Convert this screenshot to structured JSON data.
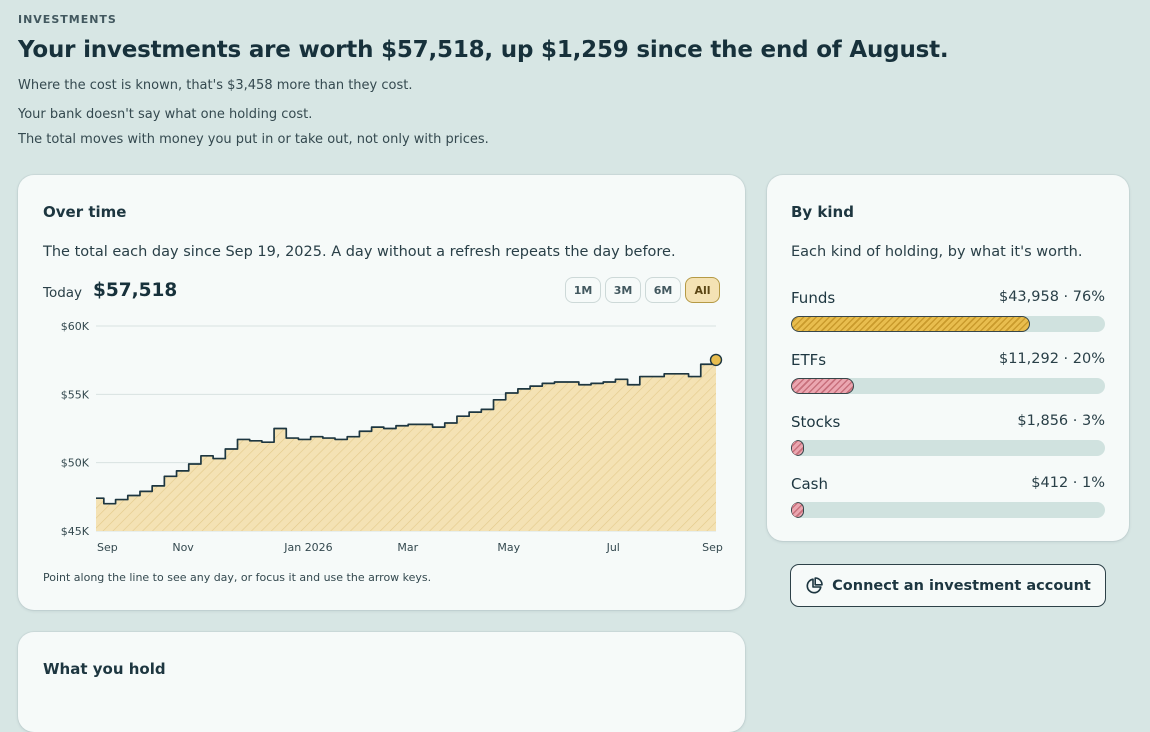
{
  "page": {
    "eyebrow": "INVESTMENTS",
    "headline": "Your investments are worth $57,518, up $1,259 since the end of August.",
    "notes": [
      "Where the cost is known, that's $3,458 more than they cost.",
      "Your bank doesn't say what one holding cost.",
      "The total moves with money you put in or take out, not only with prices."
    ]
  },
  "over_time": {
    "title": "Over time",
    "description": "The total each day since Sep 19, 2025. A day without a refresh repeats the day before.",
    "today_label": "Today",
    "today_value": "$57,518",
    "ranges": [
      "1M",
      "3M",
      "6M",
      "All"
    ],
    "active_range": "All",
    "hint": "Point along the line to see any day, or focus it and use the arrow keys."
  },
  "chart_data": {
    "type": "area",
    "title": "",
    "xlabel": "",
    "ylabel": "",
    "ylim": [
      45000,
      60000
    ],
    "y_ticks": [
      "$45K",
      "$50K",
      "$55K",
      "$60K"
    ],
    "y_tick_values": [
      45000,
      50000,
      55000,
      60000
    ],
    "x_ticks": [
      "Sep",
      "Nov",
      "Jan 2026",
      "Mar",
      "May",
      "Jul",
      "Sep"
    ],
    "x_tick_dates": [
      "2025-09-19",
      "2025-11-08",
      "2026-01-19",
      "2026-03-17",
      "2026-05-14",
      "2026-07-13",
      "2026-09-08"
    ],
    "grid": true,
    "legend": "none",
    "colors": {
      "line": "#1d3640",
      "area": "#f4e2b4",
      "hatch": "#e3c98a",
      "end_point": "#e8bd4e"
    },
    "series": [
      {
        "x": [
          "2025-09-19",
          "2025-09-25",
          "2025-10-02",
          "2025-10-09",
          "2025-10-16",
          "2025-10-23",
          "2025-10-30",
          "2025-11-06",
          "2025-11-13",
          "2025-11-20",
          "2025-11-27",
          "2025-12-04",
          "2025-12-11",
          "2025-12-18",
          "2025-12-25",
          "2026-01-01",
          "2026-01-08",
          "2026-01-15",
          "2026-01-22",
          "2026-01-29",
          "2026-02-05",
          "2026-02-12",
          "2026-02-19",
          "2026-02-26",
          "2026-03-05",
          "2026-03-12",
          "2026-03-19",
          "2026-03-26",
          "2026-04-02",
          "2026-04-09",
          "2026-04-16",
          "2026-04-23",
          "2026-04-30",
          "2026-05-07",
          "2026-05-14",
          "2026-05-21",
          "2026-05-28",
          "2026-06-04",
          "2026-06-11",
          "2026-06-18",
          "2026-06-25",
          "2026-07-02",
          "2026-07-09",
          "2026-07-16",
          "2026-07-23",
          "2026-07-30",
          "2026-08-06",
          "2026-08-13",
          "2026-08-20",
          "2026-08-27",
          "2026-09-03",
          "2026-09-10"
        ],
        "values": [
          47400,
          47000,
          47300,
          47600,
          47900,
          48300,
          49000,
          49400,
          49900,
          50500,
          50300,
          51000,
          51700,
          51600,
          51500,
          52500,
          51800,
          51700,
          51900,
          51800,
          51700,
          51900,
          52300,
          52600,
          52500,
          52700,
          52800,
          52800,
          52600,
          52900,
          53400,
          53700,
          53900,
          54600,
          55100,
          55400,
          55600,
          55800,
          55900,
          55900,
          55700,
          55800,
          55900,
          56100,
          55700,
          56300,
          56300,
          56500,
          56500,
          56300,
          57200,
          57518
        ]
      }
    ]
  },
  "by_kind": {
    "title": "By kind",
    "description": "Each kind of holding, by what it's worth.",
    "items": [
      {
        "label": "Funds",
        "value": "$43,958 · 76%",
        "percent": 76,
        "color": "gold"
      },
      {
        "label": "ETFs",
        "value": "$11,292 · 20%",
        "percent": 20,
        "color": "pink"
      },
      {
        "label": "Stocks",
        "value": "$1,856 · 3%",
        "percent": 3,
        "color": "pink"
      },
      {
        "label": "Cash",
        "value": "$412 · 1%",
        "percent": 1,
        "color": "pink"
      }
    ]
  },
  "connect": {
    "label": "Connect an investment account",
    "icon": "pie-chart-icon"
  },
  "holdings": {
    "title": "What you hold"
  }
}
